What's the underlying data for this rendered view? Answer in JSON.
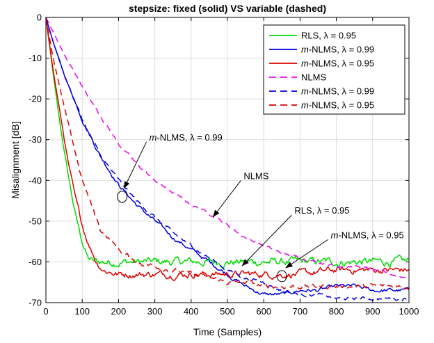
{
  "chart_data": {
    "type": "line",
    "title": "stepsize: fixed (solid) VS variable (dashed)",
    "xlabel": "Time (Samples)",
    "ylabel": "Misalignment [dB]",
    "xlim": [
      0,
      1000
    ],
    "ylim": [
      -70,
      0
    ],
    "xticks": [
      0,
      100,
      200,
      300,
      400,
      500,
      600,
      700,
      800,
      900,
      1000
    ],
    "yticks": [
      0,
      -10,
      -20,
      -30,
      -40,
      -50,
      -60,
      -70
    ],
    "grid": true,
    "legend_position": "top-right",
    "series": [
      {
        "name": "RLS, λ = 0.95",
        "color": "#00dd00",
        "style": "solid",
        "x": [
          0,
          20,
          40,
          60,
          80,
          100,
          115,
          130,
          150,
          200,
          300,
          400,
          500,
          600,
          700,
          800,
          900,
          1000
        ],
        "y": [
          0,
          -14,
          -27,
          -38,
          -48,
          -55,
          -59,
          -60,
          -60,
          -60,
          -60,
          -60,
          -60,
          -60,
          -60,
          -60,
          -60,
          -60
        ],
        "noise_amp": 1.2
      },
      {
        "name": "m-NLMS, λ = 0.99",
        "color": "#0000dd",
        "style": "solid",
        "x": [
          0,
          20,
          50,
          100,
          150,
          200,
          250,
          300,
          350,
          400,
          450,
          500,
          550,
          600,
          650,
          700,
          750,
          800,
          850,
          900,
          950,
          1000
        ],
        "y": [
          0,
          -6,
          -14,
          -25,
          -34,
          -41,
          -46,
          -50,
          -54,
          -57,
          -60,
          -63,
          -66,
          -68,
          -68,
          -67,
          -67,
          -66,
          -66,
          -67,
          -67,
          -67
        ],
        "noise_amp": 0.6
      },
      {
        "name": "m-NLMS, λ = 0.95",
        "color": "#dd0000",
        "style": "solid",
        "x": [
          0,
          20,
          40,
          60,
          80,
          100,
          120,
          140,
          160,
          200,
          300,
          400,
          500,
          600,
          700,
          800,
          900,
          1000
        ],
        "y": [
          0,
          -13,
          -24,
          -35,
          -44,
          -51,
          -56,
          -60,
          -62,
          -63,
          -63,
          -63,
          -63,
          -63,
          -63,
          -62,
          -62,
          -62
        ],
        "noise_amp": 1.0
      },
      {
        "name": "NLMS",
        "color": "#ee00ee",
        "style": "dashed",
        "x": [
          0,
          50,
          100,
          150,
          200,
          250,
          300,
          350,
          400,
          450,
          500,
          550,
          600,
          650,
          700,
          750,
          800,
          850,
          900,
          950,
          1000
        ],
        "y": [
          0,
          -9,
          -17,
          -24,
          -31,
          -36,
          -40,
          -43,
          -46,
          -48,
          -51,
          -54,
          -56,
          -58,
          -59,
          -60,
          -61,
          -61,
          -62,
          -63,
          -64
        ],
        "noise_amp": 0.4
      },
      {
        "name": "m-NLMS, λ = 0.99",
        "color": "#0000dd",
        "style": "dashed",
        "x": [
          0,
          20,
          50,
          100,
          150,
          200,
          250,
          300,
          350,
          400,
          450,
          500,
          550,
          600,
          650,
          700,
          750,
          800,
          850,
          900,
          950,
          1000
        ],
        "y": [
          0,
          -6,
          -14,
          -25,
          -34,
          -40,
          -45,
          -49,
          -53,
          -56,
          -59,
          -62,
          -64,
          -65,
          -67,
          -68,
          -68,
          -69,
          -69,
          -69,
          -69,
          -69
        ],
        "noise_amp": 0.5
      },
      {
        "name": "m-NLMS, λ = 0.95",
        "color": "#dd0000",
        "style": "dashed",
        "x": [
          0,
          20,
          50,
          100,
          150,
          200,
          250,
          300,
          350,
          400,
          450,
          500,
          550,
          600,
          650,
          700,
          750,
          800,
          850,
          900,
          950,
          1000
        ],
        "y": [
          0,
          -10,
          -22,
          -40,
          -52,
          -57,
          -60,
          -61,
          -62,
          -63,
          -64,
          -65,
          -65,
          -66,
          -66,
          -66,
          -66,
          -66,
          -66,
          -66,
          -66,
          -66
        ],
        "noise_amp": 0.7
      }
    ],
    "annotations": [
      {
        "label_prefix": "m",
        "label_rest": "-NLMS, λ = 0.99",
        "text_x": 300,
        "text_y": -29.5,
        "tip_x": 215,
        "tip_y": -42,
        "circle_x": 210,
        "circle_y": -44
      },
      {
        "label_prefix": "",
        "label_rest": "NLMS",
        "text_x": 560,
        "text_y": -39,
        "tip_x": 460,
        "tip_y": -49,
        "circle_x": null,
        "circle_y": null
      },
      {
        "label_prefix": "",
        "label_rest": "RLS, λ = 0.95",
        "text_x": 700,
        "text_y": -47.5,
        "tip_x": 540,
        "tip_y": -61,
        "circle_x": null,
        "circle_y": null
      },
      {
        "label_prefix": "m",
        "label_rest": "-NLMS, λ = 0.95",
        "text_x": 800,
        "text_y": -53.5,
        "tip_x": 660,
        "tip_y": -61.5,
        "circle_x": 650,
        "circle_y": -63.5
      }
    ]
  }
}
